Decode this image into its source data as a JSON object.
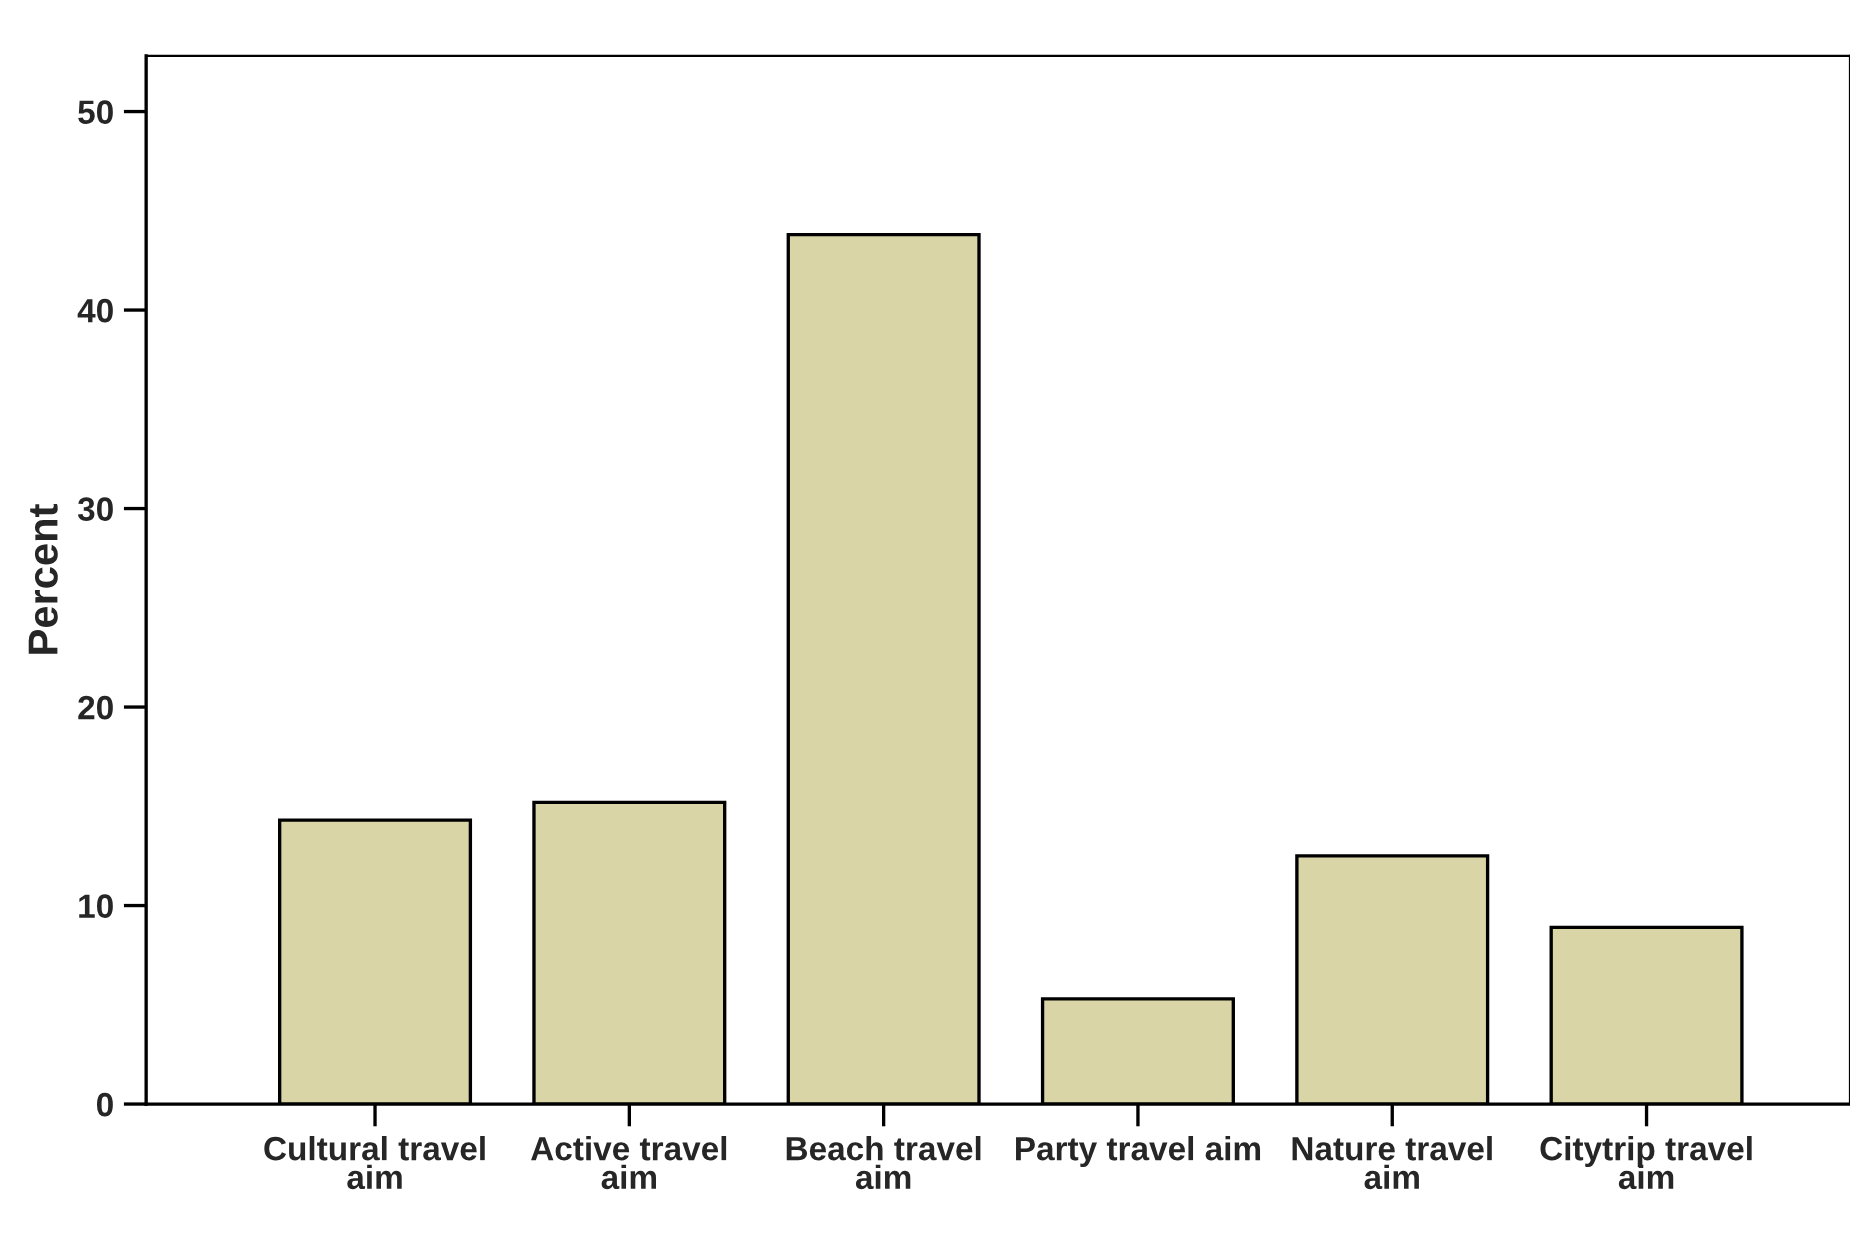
{
  "chart_data": {
    "type": "bar",
    "ylabel": "Percent",
    "categories": [
      "Cultural travel\naim",
      "Active travel\naim",
      "Beach travel\naim",
      "Party travel aim",
      "Nature travel\naim",
      "Citytrip travel\naim"
    ],
    "values": [
      14.3,
      15.2,
      43.8,
      5.3,
      12.5,
      8.9
    ],
    "color": "#d9d5a7",
    "ylim": [
      0,
      52.8
    ],
    "yticks": [
      0,
      10,
      20,
      30,
      40,
      50
    ],
    "grid": false
  }
}
